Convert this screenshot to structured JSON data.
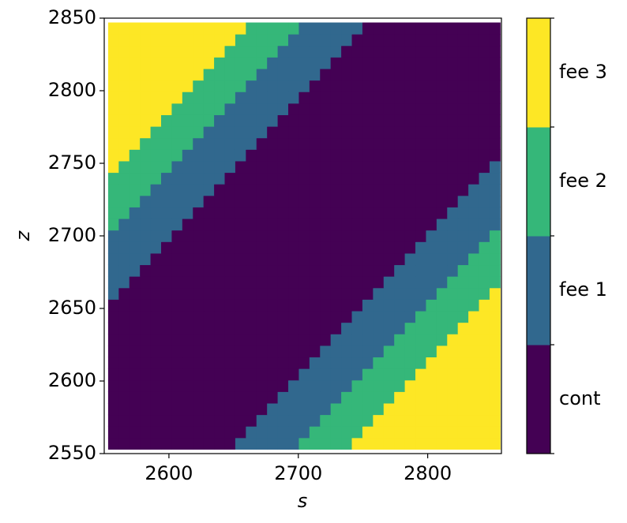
{
  "chart_data": {
    "type": "heatmap",
    "xlabel": "s",
    "ylabel": "z",
    "xlim": [
      2550,
      2857
    ],
    "ylim": [
      2550,
      2850
    ],
    "xticks": [
      2600,
      2700,
      2800
    ],
    "yticks": [
      2550,
      2600,
      2650,
      2700,
      2750,
      2800,
      2850
    ],
    "extent": [
      2553,
      2856,
      2553,
      2847
    ],
    "categories": [
      "cont",
      "fee 1",
      "fee 2",
      "fee 3"
    ],
    "colors": [
      "#440154",
      "#31688e",
      "#35b779",
      "#fde725"
    ],
    "values": [
      [
        0,
        0,
        0,
        0,
        0,
        0,
        0,
        0,
        0,
        0,
        0,
        0,
        1,
        1,
        1,
        1,
        1,
        1,
        2,
        2,
        2,
        2,
        2,
        3,
        3,
        3,
        3,
        3,
        3,
        3,
        3,
        3,
        3,
        3,
        3,
        3,
        3
      ],
      [
        0,
        0,
        0,
        0,
        0,
        0,
        0,
        0,
        0,
        0,
        0,
        0,
        0,
        1,
        1,
        1,
        1,
        1,
        1,
        2,
        2,
        2,
        2,
        2,
        3,
        3,
        3,
        3,
        3,
        3,
        3,
        3,
        3,
        3,
        3,
        3,
        3
      ],
      [
        0,
        0,
        0,
        0,
        0,
        0,
        0,
        0,
        0,
        0,
        0,
        0,
        0,
        0,
        1,
        1,
        1,
        1,
        1,
        1,
        2,
        2,
        2,
        2,
        2,
        3,
        3,
        3,
        3,
        3,
        3,
        3,
        3,
        3,
        3,
        3,
        3
      ],
      [
        0,
        0,
        0,
        0,
        0,
        0,
        0,
        0,
        0,
        0,
        0,
        0,
        0,
        0,
        0,
        1,
        1,
        1,
        1,
        1,
        1,
        2,
        2,
        2,
        2,
        2,
        3,
        3,
        3,
        3,
        3,
        3,
        3,
        3,
        3,
        3,
        3
      ],
      [
        0,
        0,
        0,
        0,
        0,
        0,
        0,
        0,
        0,
        0,
        0,
        0,
        0,
        0,
        0,
        0,
        1,
        1,
        1,
        1,
        1,
        1,
        2,
        2,
        2,
        2,
        2,
        3,
        3,
        3,
        3,
        3,
        3,
        3,
        3,
        3,
        3
      ],
      [
        0,
        0,
        0,
        0,
        0,
        0,
        0,
        0,
        0,
        0,
        0,
        0,
        0,
        0,
        0,
        0,
        0,
        1,
        1,
        1,
        1,
        1,
        1,
        2,
        2,
        2,
        2,
        2,
        3,
        3,
        3,
        3,
        3,
        3,
        3,
        3,
        3
      ],
      [
        0,
        0,
        0,
        0,
        0,
        0,
        0,
        0,
        0,
        0,
        0,
        0,
        0,
        0,
        0,
        0,
        0,
        0,
        1,
        1,
        1,
        1,
        1,
        1,
        2,
        2,
        2,
        2,
        2,
        3,
        3,
        3,
        3,
        3,
        3,
        3,
        3
      ],
      [
        0,
        0,
        0,
        0,
        0,
        0,
        0,
        0,
        0,
        0,
        0,
        0,
        0,
        0,
        0,
        0,
        0,
        0,
        0,
        1,
        1,
        1,
        1,
        1,
        1,
        2,
        2,
        2,
        2,
        2,
        3,
        3,
        3,
        3,
        3,
        3,
        3
      ],
      [
        0,
        0,
        0,
        0,
        0,
        0,
        0,
        0,
        0,
        0,
        0,
        0,
        0,
        0,
        0,
        0,
        0,
        0,
        0,
        0,
        1,
        1,
        1,
        1,
        1,
        1,
        2,
        2,
        2,
        2,
        2,
        3,
        3,
        3,
        3,
        3,
        3
      ],
      [
        0,
        0,
        0,
        0,
        0,
        0,
        0,
        0,
        0,
        0,
        0,
        0,
        0,
        0,
        0,
        0,
        0,
        0,
        0,
        0,
        0,
        1,
        1,
        1,
        1,
        1,
        1,
        2,
        2,
        2,
        2,
        2,
        3,
        3,
        3,
        3,
        3
      ],
      [
        0,
        0,
        0,
        0,
        0,
        0,
        0,
        0,
        0,
        0,
        0,
        0,
        0,
        0,
        0,
        0,
        0,
        0,
        0,
        0,
        0,
        0,
        1,
        1,
        1,
        1,
        1,
        1,
        2,
        2,
        2,
        2,
        2,
        3,
        3,
        3,
        3
      ],
      [
        0,
        0,
        0,
        0,
        0,
        0,
        0,
        0,
        0,
        0,
        0,
        0,
        0,
        0,
        0,
        0,
        0,
        0,
        0,
        0,
        0,
        0,
        0,
        1,
        1,
        1,
        1,
        1,
        1,
        2,
        2,
        2,
        2,
        2,
        3,
        3,
        3
      ],
      [
        0,
        0,
        0,
        0,
        0,
        0,
        0,
        0,
        0,
        0,
        0,
        0,
        0,
        0,
        0,
        0,
        0,
        0,
        0,
        0,
        0,
        0,
        0,
        0,
        1,
        1,
        1,
        1,
        1,
        1,
        2,
        2,
        2,
        2,
        2,
        3,
        3
      ],
      [
        1,
        0,
        0,
        0,
        0,
        0,
        0,
        0,
        0,
        0,
        0,
        0,
        0,
        0,
        0,
        0,
        0,
        0,
        0,
        0,
        0,
        0,
        0,
        0,
        0,
        1,
        1,
        1,
        1,
        1,
        1,
        2,
        2,
        2,
        2,
        2,
        3
      ],
      [
        1,
        1,
        0,
        0,
        0,
        0,
        0,
        0,
        0,
        0,
        0,
        0,
        0,
        0,
        0,
        0,
        0,
        0,
        0,
        0,
        0,
        0,
        0,
        0,
        0,
        0,
        1,
        1,
        1,
        1,
        1,
        1,
        2,
        2,
        2,
        2,
        2
      ],
      [
        1,
        1,
        1,
        0,
        0,
        0,
        0,
        0,
        0,
        0,
        0,
        0,
        0,
        0,
        0,
        0,
        0,
        0,
        0,
        0,
        0,
        0,
        0,
        0,
        0,
        0,
        0,
        1,
        1,
        1,
        1,
        1,
        1,
        2,
        2,
        2,
        2
      ],
      [
        1,
        1,
        1,
        1,
        0,
        0,
        0,
        0,
        0,
        0,
        0,
        0,
        0,
        0,
        0,
        0,
        0,
        0,
        0,
        0,
        0,
        0,
        0,
        0,
        0,
        0,
        0,
        0,
        1,
        1,
        1,
        1,
        1,
        1,
        2,
        2,
        2
      ],
      [
        1,
        1,
        1,
        1,
        1,
        0,
        0,
        0,
        0,
        0,
        0,
        0,
        0,
        0,
        0,
        0,
        0,
        0,
        0,
        0,
        0,
        0,
        0,
        0,
        0,
        0,
        0,
        0,
        0,
        1,
        1,
        1,
        1,
        1,
        1,
        2,
        2
      ],
      [
        1,
        1,
        1,
        1,
        1,
        1,
        0,
        0,
        0,
        0,
        0,
        0,
        0,
        0,
        0,
        0,
        0,
        0,
        0,
        0,
        0,
        0,
        0,
        0,
        0,
        0,
        0,
        0,
        0,
        0,
        1,
        1,
        1,
        1,
        1,
        1,
        2
      ],
      [
        2,
        1,
        1,
        1,
        1,
        1,
        1,
        0,
        0,
        0,
        0,
        0,
        0,
        0,
        0,
        0,
        0,
        0,
        0,
        0,
        0,
        0,
        0,
        0,
        0,
        0,
        0,
        0,
        0,
        0,
        0,
        1,
        1,
        1,
        1,
        1,
        1
      ],
      [
        2,
        2,
        1,
        1,
        1,
        1,
        1,
        1,
        0,
        0,
        0,
        0,
        0,
        0,
        0,
        0,
        0,
        0,
        0,
        0,
        0,
        0,
        0,
        0,
        0,
        0,
        0,
        0,
        0,
        0,
        0,
        0,
        1,
        1,
        1,
        1,
        1
      ],
      [
        2,
        2,
        2,
        1,
        1,
        1,
        1,
        1,
        1,
        0,
        0,
        0,
        0,
        0,
        0,
        0,
        0,
        0,
        0,
        0,
        0,
        0,
        0,
        0,
        0,
        0,
        0,
        0,
        0,
        0,
        0,
        0,
        0,
        1,
        1,
        1,
        1
      ],
      [
        2,
        2,
        2,
        2,
        1,
        1,
        1,
        1,
        1,
        1,
        0,
        0,
        0,
        0,
        0,
        0,
        0,
        0,
        0,
        0,
        0,
        0,
        0,
        0,
        0,
        0,
        0,
        0,
        0,
        0,
        0,
        0,
        0,
        0,
        1,
        1,
        1
      ],
      [
        2,
        2,
        2,
        2,
        2,
        1,
        1,
        1,
        1,
        1,
        1,
        0,
        0,
        0,
        0,
        0,
        0,
        0,
        0,
        0,
        0,
        0,
        0,
        0,
        0,
        0,
        0,
        0,
        0,
        0,
        0,
        0,
        0,
        0,
        0,
        1,
        1
      ],
      [
        3,
        2,
        2,
        2,
        2,
        2,
        1,
        1,
        1,
        1,
        1,
        1,
        0,
        0,
        0,
        0,
        0,
        0,
        0,
        0,
        0,
        0,
        0,
        0,
        0,
        0,
        0,
        0,
        0,
        0,
        0,
        0,
        0,
        0,
        0,
        0,
        1
      ],
      [
        3,
        3,
        2,
        2,
        2,
        2,
        2,
        1,
        1,
        1,
        1,
        1,
        1,
        0,
        0,
        0,
        0,
        0,
        0,
        0,
        0,
        0,
        0,
        0,
        0,
        0,
        0,
        0,
        0,
        0,
        0,
        0,
        0,
        0,
        0,
        0,
        0
      ],
      [
        3,
        3,
        3,
        2,
        2,
        2,
        2,
        2,
        1,
        1,
        1,
        1,
        1,
        1,
        0,
        0,
        0,
        0,
        0,
        0,
        0,
        0,
        0,
        0,
        0,
        0,
        0,
        0,
        0,
        0,
        0,
        0,
        0,
        0,
        0,
        0,
        0
      ],
      [
        3,
        3,
        3,
        3,
        2,
        2,
        2,
        2,
        2,
        1,
        1,
        1,
        1,
        1,
        1,
        0,
        0,
        0,
        0,
        0,
        0,
        0,
        0,
        0,
        0,
        0,
        0,
        0,
        0,
        0,
        0,
        0,
        0,
        0,
        0,
        0,
        0
      ],
      [
        3,
        3,
        3,
        3,
        3,
        2,
        2,
        2,
        2,
        2,
        1,
        1,
        1,
        1,
        1,
        1,
        0,
        0,
        0,
        0,
        0,
        0,
        0,
        0,
        0,
        0,
        0,
        0,
        0,
        0,
        0,
        0,
        0,
        0,
        0,
        0,
        0
      ],
      [
        3,
        3,
        3,
        3,
        3,
        3,
        2,
        2,
        2,
        2,
        2,
        1,
        1,
        1,
        1,
        1,
        1,
        0,
        0,
        0,
        0,
        0,
        0,
        0,
        0,
        0,
        0,
        0,
        0,
        0,
        0,
        0,
        0,
        0,
        0,
        0,
        0
      ],
      [
        3,
        3,
        3,
        3,
        3,
        3,
        3,
        2,
        2,
        2,
        2,
        2,
        1,
        1,
        1,
        1,
        1,
        1,
        0,
        0,
        0,
        0,
        0,
        0,
        0,
        0,
        0,
        0,
        0,
        0,
        0,
        0,
        0,
        0,
        0,
        0,
        0
      ],
      [
        3,
        3,
        3,
        3,
        3,
        3,
        3,
        3,
        2,
        2,
        2,
        2,
        2,
        1,
        1,
        1,
        1,
        1,
        1,
        0,
        0,
        0,
        0,
        0,
        0,
        0,
        0,
        0,
        0,
        0,
        0,
        0,
        0,
        0,
        0,
        0,
        0
      ],
      [
        3,
        3,
        3,
        3,
        3,
        3,
        3,
        3,
        3,
        2,
        2,
        2,
        2,
        2,
        1,
        1,
        1,
        1,
        1,
        1,
        0,
        0,
        0,
        0,
        0,
        0,
        0,
        0,
        0,
        0,
        0,
        0,
        0,
        0,
        0,
        0,
        0
      ],
      [
        3,
        3,
        3,
        3,
        3,
        3,
        3,
        3,
        3,
        3,
        2,
        2,
        2,
        2,
        2,
        1,
        1,
        1,
        1,
        1,
        1,
        0,
        0,
        0,
        0,
        0,
        0,
        0,
        0,
        0,
        0,
        0,
        0,
        0,
        0,
        0,
        0
      ],
      [
        3,
        3,
        3,
        3,
        3,
        3,
        3,
        3,
        3,
        3,
        3,
        2,
        2,
        2,
        2,
        2,
        1,
        1,
        1,
        1,
        1,
        1,
        0,
        0,
        0,
        0,
        0,
        0,
        0,
        0,
        0,
        0,
        0,
        0,
        0,
        0,
        0
      ],
      [
        3,
        3,
        3,
        3,
        3,
        3,
        3,
        3,
        3,
        3,
        3,
        3,
        2,
        2,
        2,
        2,
        2,
        1,
        1,
        1,
        1,
        1,
        1,
        0,
        0,
        0,
        0,
        0,
        0,
        0,
        0,
        0,
        0,
        0,
        0,
        0,
        0
      ],
      [
        3,
        3,
        3,
        3,
        3,
        3,
        3,
        3,
        3,
        3,
        3,
        3,
        3,
        2,
        2,
        2,
        2,
        2,
        1,
        1,
        1,
        1,
        1,
        1,
        0,
        0,
        0,
        0,
        0,
        0,
        0,
        0,
        0,
        0,
        0,
        0,
        0
      ]
    ]
  }
}
